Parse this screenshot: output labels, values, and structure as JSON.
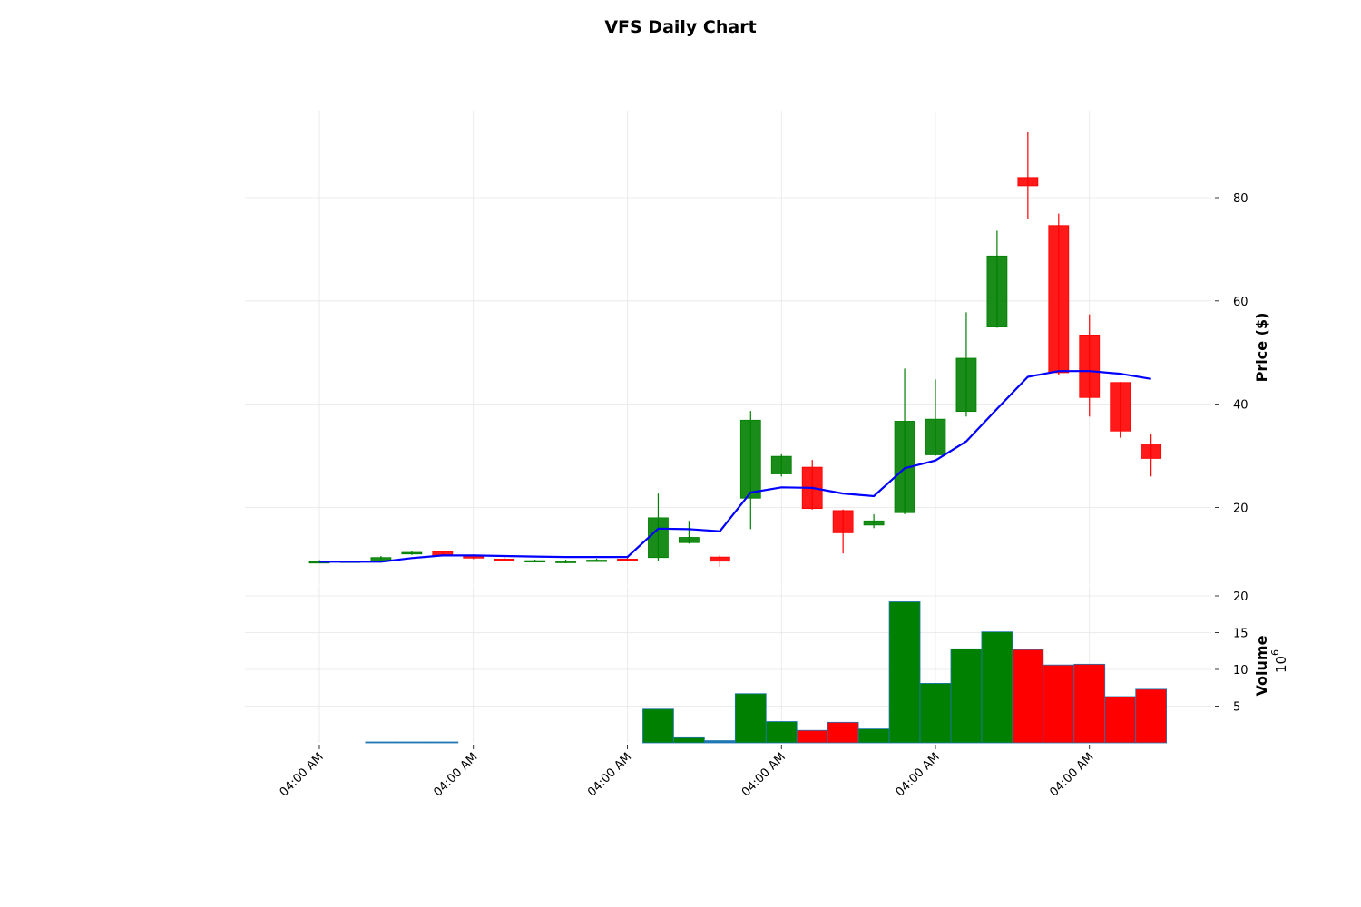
{
  "chart_data": {
    "type": "candlestick",
    "title": "VFS Daily Chart",
    "price_ylabel": "Price ($)",
    "volume_ylabel": "Volume",
    "volume_multiplier": "10",
    "volume_multiplier_exp": "6",
    "price_ylim": [
      5,
      97
    ],
    "price_yticks": [
      "20",
      "40",
      "60",
      "80"
    ],
    "volume_ylim": [
      0,
      21
    ],
    "volume_yticks": [
      "5",
      "10",
      "15",
      "20"
    ],
    "x_ticks": [
      "04:00 AM",
      "04:00 AM",
      "04:00 AM",
      "04:00 AM",
      "04:00 AM",
      "04:00 AM"
    ],
    "x_tick_positions": [
      0,
      5,
      10,
      15,
      20,
      25
    ],
    "colors": {
      "up": "#008000",
      "down": "#ff0000",
      "ma": "#0000ff",
      "low_volume": "#1f77b4"
    },
    "candles": [
      {
        "o": 9.5,
        "h": 9.8,
        "l": 9.3,
        "c": 9.5,
        "v": 0.0
      },
      {
        "o": 9.5,
        "h": 9.7,
        "l": 9.3,
        "c": 9.6,
        "v": 0.0
      },
      {
        "o": 9.6,
        "h": 10.6,
        "l": 9.5,
        "c": 10.3,
        "v": 0.1
      },
      {
        "o": 11.0,
        "h": 11.6,
        "l": 10.8,
        "c": 11.3,
        "v": 0.1
      },
      {
        "o": 11.4,
        "h": 11.6,
        "l": 10.5,
        "c": 10.7,
        "v": 0.1
      },
      {
        "o": 10.6,
        "h": 10.9,
        "l": 10.0,
        "c": 10.2,
        "v": 0.0
      },
      {
        "o": 10.0,
        "h": 10.3,
        "l": 9.6,
        "c": 9.8,
        "v": 0.0
      },
      {
        "o": 9.6,
        "h": 9.9,
        "l": 9.4,
        "c": 9.7,
        "v": 0.0
      },
      {
        "o": 9.3,
        "h": 9.9,
        "l": 9.2,
        "c": 9.6,
        "v": 0.0
      },
      {
        "o": 9.8,
        "h": 10.1,
        "l": 9.6,
        "c": 9.8,
        "v": 0.0
      },
      {
        "o": 10.0,
        "h": 10.2,
        "l": 9.7,
        "c": 9.8,
        "v": 0.0
      },
      {
        "o": 10.3,
        "h": 22.7,
        "l": 9.7,
        "c": 18.0,
        "v": 4.6
      },
      {
        "o": 13.2,
        "h": 17.4,
        "l": 13.0,
        "c": 14.2,
        "v": 0.7
      },
      {
        "o": 10.4,
        "h": 10.8,
        "l": 8.5,
        "c": 9.6,
        "v": 0.3
      },
      {
        "o": 21.8,
        "h": 38.7,
        "l": 15.8,
        "c": 36.9,
        "v": 6.7
      },
      {
        "o": 26.5,
        "h": 30.3,
        "l": 26.0,
        "c": 29.9,
        "v": 2.9
      },
      {
        "o": 27.8,
        "h": 29.2,
        "l": 19.6,
        "c": 19.8,
        "v": 1.7
      },
      {
        "o": 19.4,
        "h": 19.6,
        "l": 11.1,
        "c": 15.1,
        "v": 2.8
      },
      {
        "o": 16.6,
        "h": 18.7,
        "l": 16.0,
        "c": 17.4,
        "v": 1.9
      },
      {
        "o": 19.0,
        "h": 46.9,
        "l": 18.7,
        "c": 36.7,
        "v": 19.2
      },
      {
        "o": 30.2,
        "h": 44.8,
        "l": 30.0,
        "c": 37.1,
        "v": 8.1
      },
      {
        "o": 38.6,
        "h": 57.8,
        "l": 37.6,
        "c": 48.9,
        "v": 12.8
      },
      {
        "o": 55.1,
        "h": 73.6,
        "l": 54.8,
        "c": 68.7,
        "v": 15.1
      },
      {
        "o": 83.9,
        "h": 92.8,
        "l": 75.9,
        "c": 82.3,
        "v": 12.7
      },
      {
        "o": 74.6,
        "h": 76.9,
        "l": 45.6,
        "c": 46.1,
        "v": 10.6
      },
      {
        "o": 53.4,
        "h": 57.4,
        "l": 37.6,
        "c": 41.3,
        "v": 10.7
      },
      {
        "o": 44.2,
        "h": 44.3,
        "l": 33.5,
        "c": 34.8,
        "v": 6.3
      },
      {
        "o": 32.3,
        "h": 34.2,
        "l": 26.0,
        "c": 29.5,
        "v": 7.3
      }
    ],
    "moving_average": [
      9.5,
      9.5,
      9.5,
      10.2,
      10.7,
      10.7,
      10.6,
      10.5,
      10.4,
      10.4,
      10.4,
      15.9,
      15.8,
      15.4,
      22.9,
      23.9,
      23.8,
      22.7,
      22.2,
      27.6,
      29.1,
      32.8,
      39.1,
      45.3,
      46.4,
      46.4,
      45.9,
      44.9
    ]
  }
}
